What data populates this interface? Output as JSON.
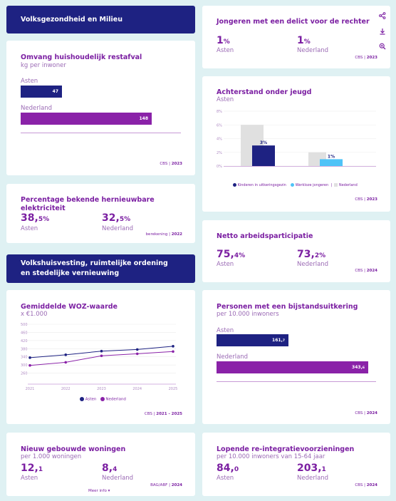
{
  "sections": {
    "health": "Volksgezondheid en Milieu",
    "housing": "Volkshuisvesting, ruimtelijke ordening en stedelijke vernieuwing"
  },
  "waste": {
    "title": "Omvang huishoudelijk restafval",
    "subtitle": "kg per inwoner",
    "bars": [
      {
        "label": "Asten",
        "value": "47",
        "num": 47
      },
      {
        "label": "Nederland",
        "value": "148",
        "num": 148
      }
    ],
    "source": "CBS",
    "year": "2023"
  },
  "renewable": {
    "title": "Percentage bekende hernieuwbare elektriciteit",
    "items": [
      {
        "int": "38,",
        "dec": "5%",
        "label": "Asten"
      },
      {
        "int": "32,",
        "dec": "5%",
        "label": "Nederland"
      }
    ],
    "source": "berekening",
    "year": "2022"
  },
  "woz": {
    "title": "Gemiddelde WOZ-waarde",
    "subtitle": "x €1.000",
    "legend": [
      "Asten",
      "Nederland"
    ],
    "source": "CBS",
    "year": "2021 - 2025"
  },
  "newhomes": {
    "title": "Nieuw gebouwde woningen",
    "subtitle": "per 1.000 woningen",
    "items": [
      {
        "int": "12,",
        "dec": "1",
        "label": "Asten"
      },
      {
        "int": "8,",
        "dec": "4",
        "label": "Nederland"
      }
    ],
    "source": "BAG/ABF",
    "year": "2024",
    "more": "Meer info"
  },
  "youth_crime": {
    "title": "Jongeren met een delict voor de rechter",
    "items": [
      {
        "int": "1",
        "dec": "%",
        "label": "Asten"
      },
      {
        "int": "1",
        "dec": "%",
        "label": "Nederland"
      }
    ],
    "source": "CBS",
    "year": "2023",
    "tools": [
      "share-icon",
      "download-icon",
      "zoom-icon"
    ]
  },
  "disadvantage": {
    "title": "Achterstand onder jeugd",
    "subtitle": "Asten",
    "legend": [
      "Kinderen in uitkeringsgezin",
      "Werkloze jongeren",
      "|",
      "Nederland"
    ],
    "source": "CBS",
    "year": "2023"
  },
  "participation": {
    "title": "Netto arbeidsparticipatie",
    "items": [
      {
        "int": "75,",
        "dec": "4%",
        "label": "Asten"
      },
      {
        "int": "73,",
        "dec": "2%",
        "label": "Nederland"
      }
    ],
    "source": "CBS",
    "year": "2024"
  },
  "welfare": {
    "title": "Personen met een bijstandsuitkering",
    "subtitle": "per 10.000 inwoners",
    "bars": [
      {
        "label": "Asten",
        "value": "161,",
        "dec": "7",
        "num": 161.7
      },
      {
        "label": "Nederland",
        "value": "343,",
        "dec": "6",
        "num": 343.6
      }
    ],
    "source": "CBS",
    "year": "2024"
  },
  "reintegration": {
    "title": "Lopende re-integratievoorzieningen",
    "subtitle": "per 10.000 inwoners van 15-64 jaar",
    "items": [
      {
        "int": "84,",
        "dec": "0",
        "label": "Asten"
      },
      {
        "int": "203,",
        "dec": "1",
        "label": "Nederland"
      }
    ],
    "source": "CBS",
    "year": "2024"
  },
  "chart_data": [
    {
      "type": "line",
      "x": [
        "2021",
        "2022",
        "2023",
        "2024",
        "2025"
      ],
      "series": [
        {
          "name": "Asten",
          "values": [
            336,
            350,
            368,
            376,
            392
          ]
        },
        {
          "name": "Nederland",
          "values": [
            298,
            313,
            345,
            355,
            366
          ]
        }
      ],
      "yticks": [
        "500",
        "460",
        "420",
        "380",
        "340",
        "300",
        "260"
      ],
      "ylim": [
        220,
        500
      ],
      "colors": {
        "Asten": "#1e2282",
        "Nederland": "#8a22a8"
      }
    },
    {
      "type": "bar",
      "categories": [
        "Kinderen in uitkeringsgezin",
        "Werkloze jongeren"
      ],
      "series": [
        {
          "name": "Nederland",
          "values": [
            6,
            2
          ]
        },
        {
          "name": "Asten",
          "values": [
            3,
            1
          ],
          "labels": [
            "3%",
            "1%"
          ]
        }
      ],
      "yticks": [
        "8%",
        "6%",
        "4%",
        "2%",
        "0%"
      ],
      "ylim": [
        0,
        8
      ]
    }
  ]
}
